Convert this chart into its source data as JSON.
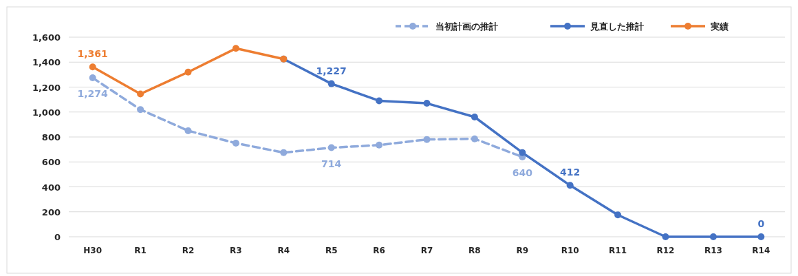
{
  "chart_data": {
    "type": "line",
    "categories": [
      "H30",
      "R1",
      "R2",
      "R3",
      "R4",
      "R5",
      "R6",
      "R7",
      "R8",
      "R9",
      "R10",
      "R11",
      "R12",
      "R13",
      "R14"
    ],
    "ylim": [
      0,
      1600
    ],
    "yticks": [
      {
        "value": 0,
        "label": "0"
      },
      {
        "value": 200,
        "label": "200"
      },
      {
        "value": 400,
        "label": "400"
      },
      {
        "value": 600,
        "label": "600"
      },
      {
        "value": 800,
        "label": "800"
      },
      {
        "value": 1000,
        "label": "1,000"
      },
      {
        "value": 1200,
        "label": "1,200"
      },
      {
        "value": 1400,
        "label": "1,400"
      },
      {
        "value": 1600,
        "label": "1,600"
      }
    ],
    "grid": "y",
    "legend": "top right",
    "marker": "circle",
    "series": [
      {
        "name": "当初計画の推計",
        "color": "#8faadc",
        "line_style": "dashed",
        "values": [
          1274,
          1020,
          850,
          750,
          675,
          714,
          735,
          780,
          785,
          640,
          null,
          null,
          null,
          null,
          null
        ],
        "value_labels": [
          "1,274",
          null,
          null,
          null,
          null,
          "714",
          null,
          null,
          null,
          "640",
          null,
          null,
          null,
          null,
          null
        ]
      },
      {
        "name": "見直した推計",
        "color": "#4472c4",
        "line_style": "solid",
        "values": [
          null,
          null,
          null,
          null,
          1425,
          1227,
          1090,
          1070,
          960,
          675,
          412,
          175,
          0,
          0,
          0
        ],
        "value_labels": [
          null,
          null,
          null,
          null,
          null,
          "1,227",
          null,
          null,
          null,
          null,
          "412",
          null,
          null,
          null,
          "0"
        ]
      },
      {
        "name": "実績",
        "color": "#ed7d31",
        "line_style": "solid",
        "values": [
          1361,
          1145,
          1320,
          1510,
          1425,
          null,
          null,
          null,
          null,
          null,
          null,
          null,
          null,
          null,
          null
        ],
        "value_labels": [
          "1,361",
          null,
          null,
          null,
          null,
          null,
          null,
          null,
          null,
          null,
          null,
          null,
          null,
          null,
          null
        ]
      }
    ]
  }
}
